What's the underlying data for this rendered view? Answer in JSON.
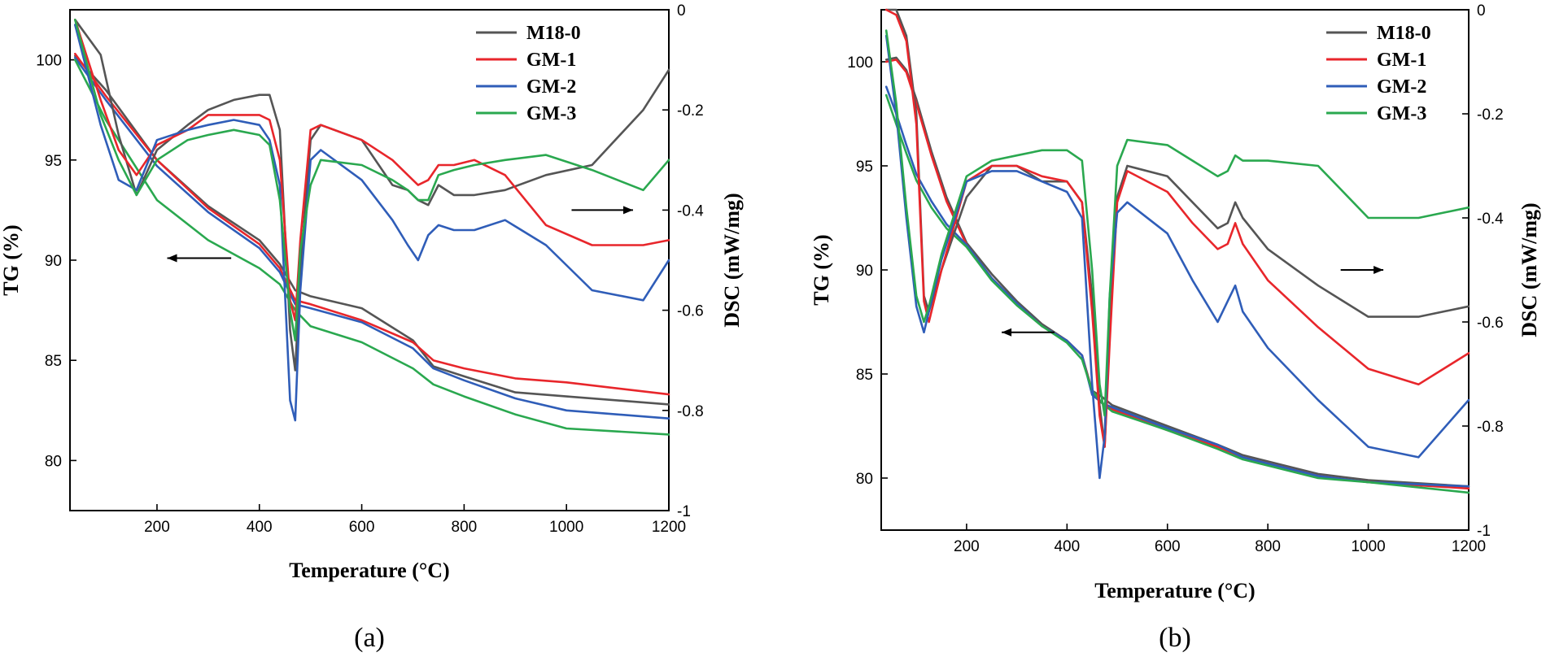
{
  "colors": {
    "M18-0": "#555555",
    "GM-1": "#e8262b",
    "GM-2": "#2f5db8",
    "GM-3": "#2aa84f"
  },
  "chart_data": [
    {
      "type": "line",
      "caption": "(a)",
      "xlabel": "Temperature (°C)",
      "ylabel": "TG (%)",
      "y2label": "DSC (mW/mg)",
      "xlim": [
        30,
        1200
      ],
      "ylim": [
        77.5,
        102.5
      ],
      "y2lim": [
        -1.0,
        0.0
      ],
      "xticks": [
        200,
        400,
        600,
        800,
        1000,
        1200
      ],
      "yticks": [
        80,
        85,
        90,
        95,
        100
      ],
      "y2ticks": [
        -1.0,
        -0.8,
        -0.6,
        -0.4,
        -0.2,
        0.0
      ],
      "legend": "top-right",
      "legend_entries": [
        "M18-0",
        "GM-1",
        "GM-2",
        "GM-3"
      ],
      "annotations": [
        {
          "type": "arrow",
          "direction": "left",
          "axis": "TG",
          "x": [
            220,
            345
          ],
          "y": 90.1
        },
        {
          "type": "arrow",
          "direction": "right",
          "axis": "DSC",
          "x": [
            1010,
            1130
          ],
          "y": -0.4
        }
      ],
      "series": [
        {
          "name": "M18-0",
          "axis": "TG",
          "x": [
            40,
            100,
            200,
            300,
            400,
            440,
            470,
            500,
            600,
            700,
            740,
            800,
            900,
            1000,
            1200
          ],
          "y": [
            100.2,
            98.5,
            95.0,
            92.7,
            91.0,
            89.8,
            88.5,
            88.2,
            87.6,
            86.0,
            84.7,
            84.2,
            83.4,
            83.2,
            82.8
          ]
        },
        {
          "name": "GM-1",
          "axis": "TG",
          "x": [
            40,
            100,
            200,
            300,
            400,
            440,
            470,
            500,
            600,
            700,
            740,
            800,
            900,
            1000,
            1200
          ],
          "y": [
            100.3,
            98.2,
            95.0,
            92.6,
            90.8,
            89.6,
            88.0,
            87.8,
            87.0,
            85.9,
            85.0,
            84.6,
            84.1,
            83.9,
            83.3
          ]
        },
        {
          "name": "GM-2",
          "axis": "TG",
          "x": [
            40,
            100,
            200,
            300,
            400,
            440,
            470,
            500,
            600,
            700,
            740,
            800,
            900,
            1000,
            1200
          ],
          "y": [
            100.1,
            98.0,
            94.7,
            92.4,
            90.6,
            89.4,
            87.8,
            87.6,
            86.9,
            85.6,
            84.6,
            84.0,
            83.1,
            82.5,
            82.1
          ]
        },
        {
          "name": "GM-3",
          "axis": "TG",
          "x": [
            40,
            100,
            200,
            300,
            400,
            440,
            470,
            500,
            600,
            700,
            740,
            800,
            900,
            1000,
            1200
          ],
          "y": [
            100.0,
            97.0,
            93.0,
            91.0,
            89.6,
            88.8,
            87.5,
            86.7,
            85.9,
            84.6,
            83.8,
            83.2,
            82.3,
            81.6,
            81.3
          ]
        },
        {
          "name": "M18-0",
          "axis": "DSC",
          "x": [
            40,
            90,
            125,
            160,
            200,
            260,
            300,
            350,
            400,
            420,
            440,
            460,
            470,
            480,
            500,
            520,
            600,
            660,
            690,
            710,
            730,
            750,
            780,
            820,
            880,
            960,
            1050,
            1150,
            1200
          ],
          "y": [
            -0.02,
            -0.09,
            -0.25,
            -0.37,
            -0.28,
            -0.23,
            -0.2,
            -0.18,
            -0.17,
            -0.17,
            -0.24,
            -0.64,
            -0.72,
            -0.52,
            -0.26,
            -0.23,
            -0.26,
            -0.35,
            -0.36,
            -0.38,
            -0.39,
            -0.35,
            -0.37,
            -0.37,
            -0.36,
            -0.33,
            -0.31,
            -0.2,
            -0.12
          ]
        },
        {
          "name": "GM-1",
          "axis": "DSC",
          "x": [
            40,
            90,
            125,
            160,
            200,
            260,
            300,
            350,
            400,
            420,
            440,
            460,
            470,
            480,
            500,
            520,
            600,
            660,
            690,
            710,
            730,
            750,
            780,
            820,
            880,
            960,
            1050,
            1150,
            1200
          ],
          "y": [
            -0.02,
            -0.18,
            -0.28,
            -0.33,
            -0.27,
            -0.24,
            -0.21,
            -0.21,
            -0.21,
            -0.22,
            -0.3,
            -0.58,
            -0.62,
            -0.46,
            -0.24,
            -0.23,
            -0.26,
            -0.3,
            -0.33,
            -0.35,
            -0.34,
            -0.31,
            -0.31,
            -0.3,
            -0.33,
            -0.43,
            -0.47,
            -0.47,
            -0.46
          ]
        },
        {
          "name": "GM-2",
          "axis": "DSC",
          "x": [
            40,
            90,
            125,
            160,
            200,
            260,
            300,
            350,
            400,
            420,
            440,
            460,
            470,
            480,
            500,
            520,
            600,
            660,
            690,
            710,
            730,
            750,
            780,
            820,
            880,
            960,
            1050,
            1150,
            1200
          ],
          "y": [
            -0.03,
            -0.23,
            -0.34,
            -0.36,
            -0.26,
            -0.24,
            -0.23,
            -0.22,
            -0.23,
            -0.26,
            -0.35,
            -0.78,
            -0.82,
            -0.56,
            -0.3,
            -0.28,
            -0.34,
            -0.42,
            -0.47,
            -0.5,
            -0.45,
            -0.43,
            -0.44,
            -0.44,
            -0.42,
            -0.47,
            -0.56,
            -0.58,
            -0.5
          ]
        },
        {
          "name": "GM-3",
          "axis": "DSC",
          "x": [
            40,
            90,
            125,
            160,
            200,
            260,
            300,
            350,
            400,
            420,
            440,
            460,
            470,
            480,
            500,
            520,
            600,
            660,
            690,
            710,
            730,
            750,
            780,
            820,
            880,
            960,
            1050,
            1150,
            1200
          ],
          "y": [
            -0.02,
            -0.21,
            -0.3,
            -0.37,
            -0.3,
            -0.26,
            -0.25,
            -0.24,
            -0.25,
            -0.27,
            -0.38,
            -0.6,
            -0.66,
            -0.48,
            -0.35,
            -0.3,
            -0.31,
            -0.34,
            -0.36,
            -0.38,
            -0.38,
            -0.33,
            -0.32,
            -0.31,
            -0.3,
            -0.29,
            -0.32,
            -0.36,
            -0.3
          ]
        }
      ]
    },
    {
      "type": "line",
      "caption": "(b)",
      "xlabel": "Temperature (°C)",
      "ylabel": "TG (%)",
      "y2label": "DSC (mW/mg)",
      "xlim": [
        30,
        1200
      ],
      "ylim": [
        77.5,
        102.5
      ],
      "y2lim": [
        -1.0,
        0.0
      ],
      "xticks": [
        200,
        400,
        600,
        800,
        1000,
        1200
      ],
      "yticks": [
        80,
        85,
        90,
        95,
        100
      ],
      "y2ticks": [
        -1.0,
        -0.8,
        -0.6,
        -0.4,
        -0.2,
        0.0
      ],
      "legend": "top-right",
      "legend_entries": [
        "M18-0",
        "GM-1",
        "GM-2",
        "GM-3"
      ],
      "annotations": [
        {
          "type": "arrow",
          "direction": "left",
          "axis": "TG",
          "x": [
            270,
            375
          ],
          "y": 87.0
        },
        {
          "type": "arrow",
          "direction": "right",
          "axis": "DSC",
          "x": [
            945,
            1030
          ],
          "y": -0.5
        }
      ],
      "series": [
        {
          "name": "M18-0",
          "axis": "TG",
          "x": [
            40,
            60,
            80,
            100,
            130,
            160,
            200,
            250,
            300,
            350,
            400,
            430,
            450,
            470,
            490,
            600,
            700,
            750,
            800,
            900,
            1000,
            1200
          ],
          "y": [
            100.1,
            100.2,
            99.6,
            98.2,
            95.7,
            93.5,
            91.3,
            89.8,
            88.5,
            87.4,
            86.6,
            85.9,
            84.2,
            83.9,
            83.5,
            82.5,
            81.6,
            81.1,
            80.8,
            80.2,
            79.9,
            79.6
          ]
        },
        {
          "name": "GM-1",
          "axis": "TG",
          "x": [
            40,
            60,
            80,
            100,
            130,
            160,
            200,
            250,
            300,
            350,
            400,
            430,
            450,
            470,
            490,
            600,
            700,
            750,
            800,
            900,
            1000,
            1200
          ],
          "y": [
            100.0,
            100.1,
            99.5,
            98.0,
            95.5,
            93.3,
            91.2,
            89.6,
            88.4,
            87.3,
            86.6,
            85.9,
            84.1,
            83.6,
            83.3,
            82.3,
            81.5,
            81.0,
            80.7,
            80.1,
            79.8,
            79.5
          ]
        },
        {
          "name": "GM-2",
          "axis": "TG",
          "x": [
            40,
            60,
            80,
            100,
            130,
            160,
            200,
            250,
            300,
            350,
            400,
            430,
            450,
            470,
            490,
            600,
            700,
            750,
            800,
            900,
            1000,
            1200
          ],
          "y": [
            98.8,
            97.5,
            96.0,
            94.6,
            93.3,
            92.2,
            91.2,
            89.6,
            88.4,
            87.3,
            86.6,
            85.9,
            84.0,
            83.6,
            83.4,
            82.4,
            81.6,
            81.0,
            80.7,
            80.1,
            79.8,
            79.6
          ]
        },
        {
          "name": "GM-3",
          "axis": "TG",
          "x": [
            40,
            60,
            80,
            100,
            130,
            160,
            200,
            250,
            300,
            350,
            400,
            430,
            450,
            470,
            490,
            600,
            700,
            750,
            800,
            900,
            1000,
            1200
          ],
          "y": [
            98.4,
            97.0,
            95.6,
            94.3,
            93.0,
            92.0,
            91.1,
            89.5,
            88.3,
            87.3,
            86.5,
            85.7,
            84.2,
            83.6,
            83.2,
            82.3,
            81.4,
            80.9,
            80.6,
            80.0,
            79.8,
            79.3
          ]
        },
        {
          "name": "M18-0",
          "axis": "DSC",
          "x": [
            40,
            60,
            80,
            100,
            115,
            125,
            150,
            200,
            250,
            300,
            350,
            400,
            430,
            450,
            465,
            475,
            485,
            500,
            520,
            600,
            650,
            700,
            720,
            735,
            750,
            800,
            900,
            1000,
            1100,
            1200
          ],
          "y": [
            0.0,
            0.0,
            -0.05,
            -0.2,
            -0.55,
            -0.58,
            -0.5,
            -0.36,
            -0.3,
            -0.3,
            -0.33,
            -0.33,
            -0.37,
            -0.55,
            -0.76,
            -0.84,
            -0.62,
            -0.36,
            -0.3,
            -0.32,
            -0.37,
            -0.42,
            -0.41,
            -0.37,
            -0.4,
            -0.46,
            -0.53,
            -0.59,
            -0.59,
            -0.57
          ]
        },
        {
          "name": "GM-1",
          "axis": "DSC",
          "x": [
            40,
            60,
            80,
            100,
            115,
            125,
            150,
            200,
            250,
            300,
            350,
            400,
            430,
            450,
            465,
            475,
            485,
            500,
            520,
            600,
            650,
            700,
            720,
            735,
            750,
            800,
            900,
            1000,
            1100,
            1200
          ],
          "y": [
            0.0,
            -0.01,
            -0.06,
            -0.22,
            -0.56,
            -0.6,
            -0.5,
            -0.33,
            -0.3,
            -0.3,
            -0.32,
            -0.33,
            -0.37,
            -0.58,
            -0.78,
            -0.84,
            -0.64,
            -0.37,
            -0.31,
            -0.35,
            -0.41,
            -0.46,
            -0.45,
            -0.41,
            -0.45,
            -0.52,
            -0.61,
            -0.69,
            -0.72,
            -0.66
          ]
        },
        {
          "name": "GM-2",
          "axis": "DSC",
          "x": [
            40,
            60,
            80,
            100,
            115,
            125,
            150,
            200,
            250,
            300,
            350,
            400,
            430,
            450,
            465,
            475,
            485,
            500,
            520,
            600,
            650,
            700,
            720,
            735,
            750,
            800,
            900,
            1000,
            1100,
            1200
          ],
          "y": [
            -0.05,
            -0.2,
            -0.4,
            -0.57,
            -0.62,
            -0.58,
            -0.48,
            -0.33,
            -0.31,
            -0.31,
            -0.33,
            -0.35,
            -0.4,
            -0.72,
            -0.9,
            -0.82,
            -0.55,
            -0.39,
            -0.37,
            -0.43,
            -0.52,
            -0.6,
            -0.56,
            -0.53,
            -0.58,
            -0.65,
            -0.75,
            -0.84,
            -0.86,
            -0.75
          ]
        },
        {
          "name": "GM-3",
          "axis": "DSC",
          "x": [
            40,
            60,
            80,
            100,
            115,
            125,
            150,
            200,
            250,
            300,
            350,
            400,
            430,
            450,
            465,
            475,
            485,
            500,
            520,
            600,
            650,
            700,
            720,
            735,
            750,
            800,
            900,
            1000,
            1100,
            1200
          ],
          "y": [
            -0.04,
            -0.18,
            -0.38,
            -0.55,
            -0.6,
            -0.57,
            -0.47,
            -0.32,
            -0.29,
            -0.28,
            -0.27,
            -0.27,
            -0.29,
            -0.5,
            -0.72,
            -0.78,
            -0.55,
            -0.3,
            -0.25,
            -0.26,
            -0.29,
            -0.32,
            -0.31,
            -0.28,
            -0.29,
            -0.29,
            -0.3,
            -0.4,
            -0.4,
            -0.38
          ]
        }
      ]
    }
  ]
}
